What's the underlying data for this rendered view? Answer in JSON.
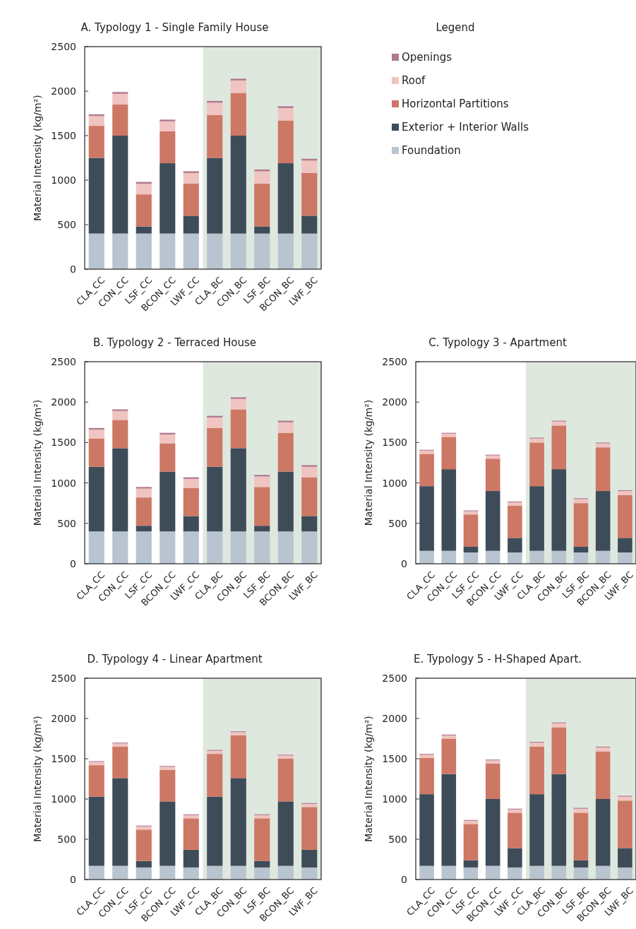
{
  "chart_data": [
    {
      "type": "bar",
      "title": "A. Typology 1 - Single Family House",
      "ylabel": "Material Intensity (kg/m²)",
      "categories": [
        "CLA_CC",
        "CON_CC",
        "LSF_CC",
        "BCON_CC",
        "LWF_CC",
        "CLA_BC",
        "CON_BC",
        "LSF_BC",
        "BCON_BC",
        "LWF_BC"
      ],
      "stacked": true,
      "ylim": [
        0,
        2500
      ],
      "yticks": [
        0,
        500,
        1000,
        1500,
        2000,
        2500
      ],
      "legend": "right",
      "legend_title": "Legend",
      "series": [
        {
          "name": "Foundation",
          "color": "#b8c4cf",
          "values": [
            400,
            400,
            400,
            400,
            400,
            400,
            400,
            400,
            400,
            400
          ]
        },
        {
          "name": "Exterior + Interior Walls",
          "color": "#3e4c59",
          "values": [
            850,
            1100,
            80,
            790,
            200,
            850,
            1100,
            80,
            790,
            200
          ]
        },
        {
          "name": "Horizontal Partitions",
          "color": "#cd7765",
          "values": [
            360,
            350,
            360,
            360,
            360,
            480,
            480,
            480,
            480,
            480
          ]
        },
        {
          "name": "Roof",
          "color": "#f0c4c0",
          "values": [
            110,
            120,
            120,
            110,
            120,
            140,
            140,
            140,
            140,
            140
          ]
        },
        {
          "name": "Openings",
          "color": "#b07a90",
          "values": [
            20,
            20,
            20,
            20,
            20,
            20,
            20,
            20,
            20,
            20
          ]
        }
      ]
    },
    {
      "type": "bar",
      "title": "B. Typology 2 - Terraced House",
      "ylabel": "Material Intensity (kg/m²)",
      "categories": [
        "CLA_CC",
        "CON_CC",
        "LSF_CC",
        "BCON_CC",
        "LWF_CC",
        "CLA_BC",
        "CON_BC",
        "LSF_BC",
        "BCON_BC",
        "LWF_BC"
      ],
      "stacked": true,
      "ylim": [
        0,
        2500
      ],
      "yticks": [
        0,
        500,
        1000,
        1500,
        2000,
        2500
      ],
      "series": [
        {
          "color": "#b8c4cf",
          "values": [
            400,
            400,
            400,
            400,
            400,
            400,
            400,
            400,
            400,
            400
          ]
        },
        {
          "color": "#3e4c59",
          "values": [
            800,
            1030,
            70,
            740,
            190,
            800,
            1030,
            70,
            740,
            190
          ]
        },
        {
          "color": "#cd7765",
          "values": [
            350,
            350,
            350,
            350,
            350,
            480,
            480,
            480,
            480,
            480
          ]
        },
        {
          "color": "#f0c4c0",
          "values": [
            110,
            110,
            110,
            110,
            110,
            130,
            130,
            130,
            130,
            130
          ]
        },
        {
          "color": "#b07a90",
          "values": [
            20,
            20,
            20,
            20,
            20,
            20,
            20,
            20,
            20,
            20
          ]
        }
      ]
    },
    {
      "type": "bar",
      "title": "C. Typology 3 - Apartment",
      "ylabel": "Material Intensity (kg/m²)",
      "categories": [
        "CLA_CC",
        "CON_CC",
        "LSF_CC",
        "BCON_CC",
        "LWF_CC",
        "CLA_BC",
        "CON_BC",
        "LSF_BC",
        "BCON_BC",
        "LWF_BC"
      ],
      "stacked": true,
      "ylim": [
        0,
        2500
      ],
      "yticks": [
        0,
        500,
        1000,
        1500,
        2000,
        2500
      ],
      "series": [
        {
          "color": "#b8c4cf",
          "values": [
            160,
            160,
            140,
            160,
            140,
            160,
            160,
            140,
            160,
            140
          ]
        },
        {
          "color": "#3e4c59",
          "values": [
            800,
            1010,
            70,
            740,
            180,
            800,
            1010,
            70,
            740,
            180
          ]
        },
        {
          "color": "#cd7765",
          "values": [
            400,
            400,
            400,
            400,
            400,
            540,
            540,
            540,
            540,
            530
          ]
        },
        {
          "color": "#f0c4c0",
          "values": [
            40,
            40,
            40,
            40,
            40,
            50,
            50,
            50,
            50,
            50
          ]
        },
        {
          "color": "#b07a90",
          "values": [
            10,
            10,
            10,
            10,
            10,
            10,
            10,
            10,
            10,
            10
          ]
        }
      ]
    },
    {
      "type": "bar",
      "title": "D. Typology 4 - Linear Apartment",
      "ylabel": "Material Intensity (kg/m²)",
      "categories": [
        "CLA_CC",
        "CON_CC",
        "LSF_CC",
        "BCON_CC",
        "LWF_CC",
        "CLA_BC",
        "CON_BC",
        "LSF_BC",
        "BCON_BC",
        "LWF_BC"
      ],
      "stacked": true,
      "ylim": [
        0,
        2500
      ],
      "yticks": [
        0,
        500,
        1000,
        1500,
        2000,
        2500
      ],
      "series": [
        {
          "color": "#b8c4cf",
          "values": [
            170,
            170,
            150,
            170,
            150,
            170,
            170,
            150,
            170,
            150
          ]
        },
        {
          "color": "#3e4c59",
          "values": [
            860,
            1090,
            80,
            800,
            220,
            860,
            1090,
            80,
            800,
            220
          ]
        },
        {
          "color": "#cd7765",
          "values": [
            390,
            390,
            390,
            390,
            390,
            530,
            530,
            530,
            530,
            530
          ]
        },
        {
          "color": "#f0c4c0",
          "values": [
            40,
            40,
            40,
            40,
            40,
            40,
            40,
            40,
            40,
            40
          ]
        },
        {
          "color": "#b07a90",
          "values": [
            10,
            10,
            10,
            10,
            10,
            10,
            10,
            10,
            10,
            10
          ]
        }
      ]
    },
    {
      "type": "bar",
      "title": "E. Typology 5 - H-Shaped Apart.",
      "ylabel": "Material Intensity (kg/m²)",
      "categories": [
        "CLA_CC",
        "CON_CC",
        "LSF_CC",
        "BCON_CC",
        "LWF_CC",
        "CLA_BC",
        "CON_BC",
        "LSF_BC",
        "BCON_BC",
        "LWF_BC"
      ],
      "stacked": true,
      "ylim": [
        0,
        2500
      ],
      "yticks": [
        0,
        500,
        1000,
        1500,
        2000,
        2500
      ],
      "series": [
        {
          "color": "#b8c4cf",
          "values": [
            170,
            170,
            150,
            170,
            150,
            170,
            170,
            150,
            170,
            150
          ]
        },
        {
          "color": "#3e4c59",
          "values": [
            890,
            1140,
            90,
            830,
            240,
            890,
            1140,
            90,
            830,
            240
          ]
        },
        {
          "color": "#cd7765",
          "values": [
            450,
            440,
            450,
            440,
            440,
            590,
            580,
            590,
            590,
            590
          ]
        },
        {
          "color": "#f0c4c0",
          "values": [
            40,
            40,
            40,
            40,
            40,
            50,
            50,
            50,
            50,
            50
          ]
        },
        {
          "color": "#b07a90",
          "values": [
            10,
            10,
            10,
            10,
            10,
            10,
            10,
            10,
            10,
            10
          ]
        }
      ]
    }
  ]
}
